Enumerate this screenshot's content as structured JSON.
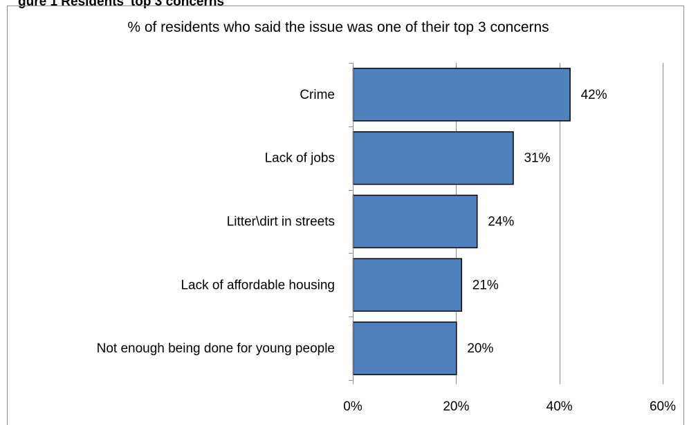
{
  "header": {
    "clipped_caption": "gure 1 Residents' top 3 concerns"
  },
  "chart_data": {
    "type": "bar",
    "orientation": "horizontal",
    "title": "% of residents who said  the issue was one of their top 3 concerns",
    "categories": [
      "Crime",
      "Lack of jobs",
      "Litter\\dirt in streets",
      "Lack of affordable housing",
      "Not enough being done for young people"
    ],
    "values": [
      42,
      31,
      24,
      21,
      20
    ],
    "data_labels": [
      "42%",
      "31%",
      "24%",
      "21%",
      "20%"
    ],
    "xlim": [
      0,
      60
    ],
    "x_ticks": [
      0,
      20,
      40,
      60
    ],
    "x_tick_labels": [
      "0%",
      "20%",
      "40%",
      "60%"
    ],
    "xlabel": "",
    "ylabel": "",
    "grid": "vertical",
    "legend": "none",
    "colors": {
      "bar_fill": "#4F81BD",
      "bar_stroke": "#000000",
      "gridline": "#8C8C8C",
      "border": "#8C8C8C"
    }
  }
}
